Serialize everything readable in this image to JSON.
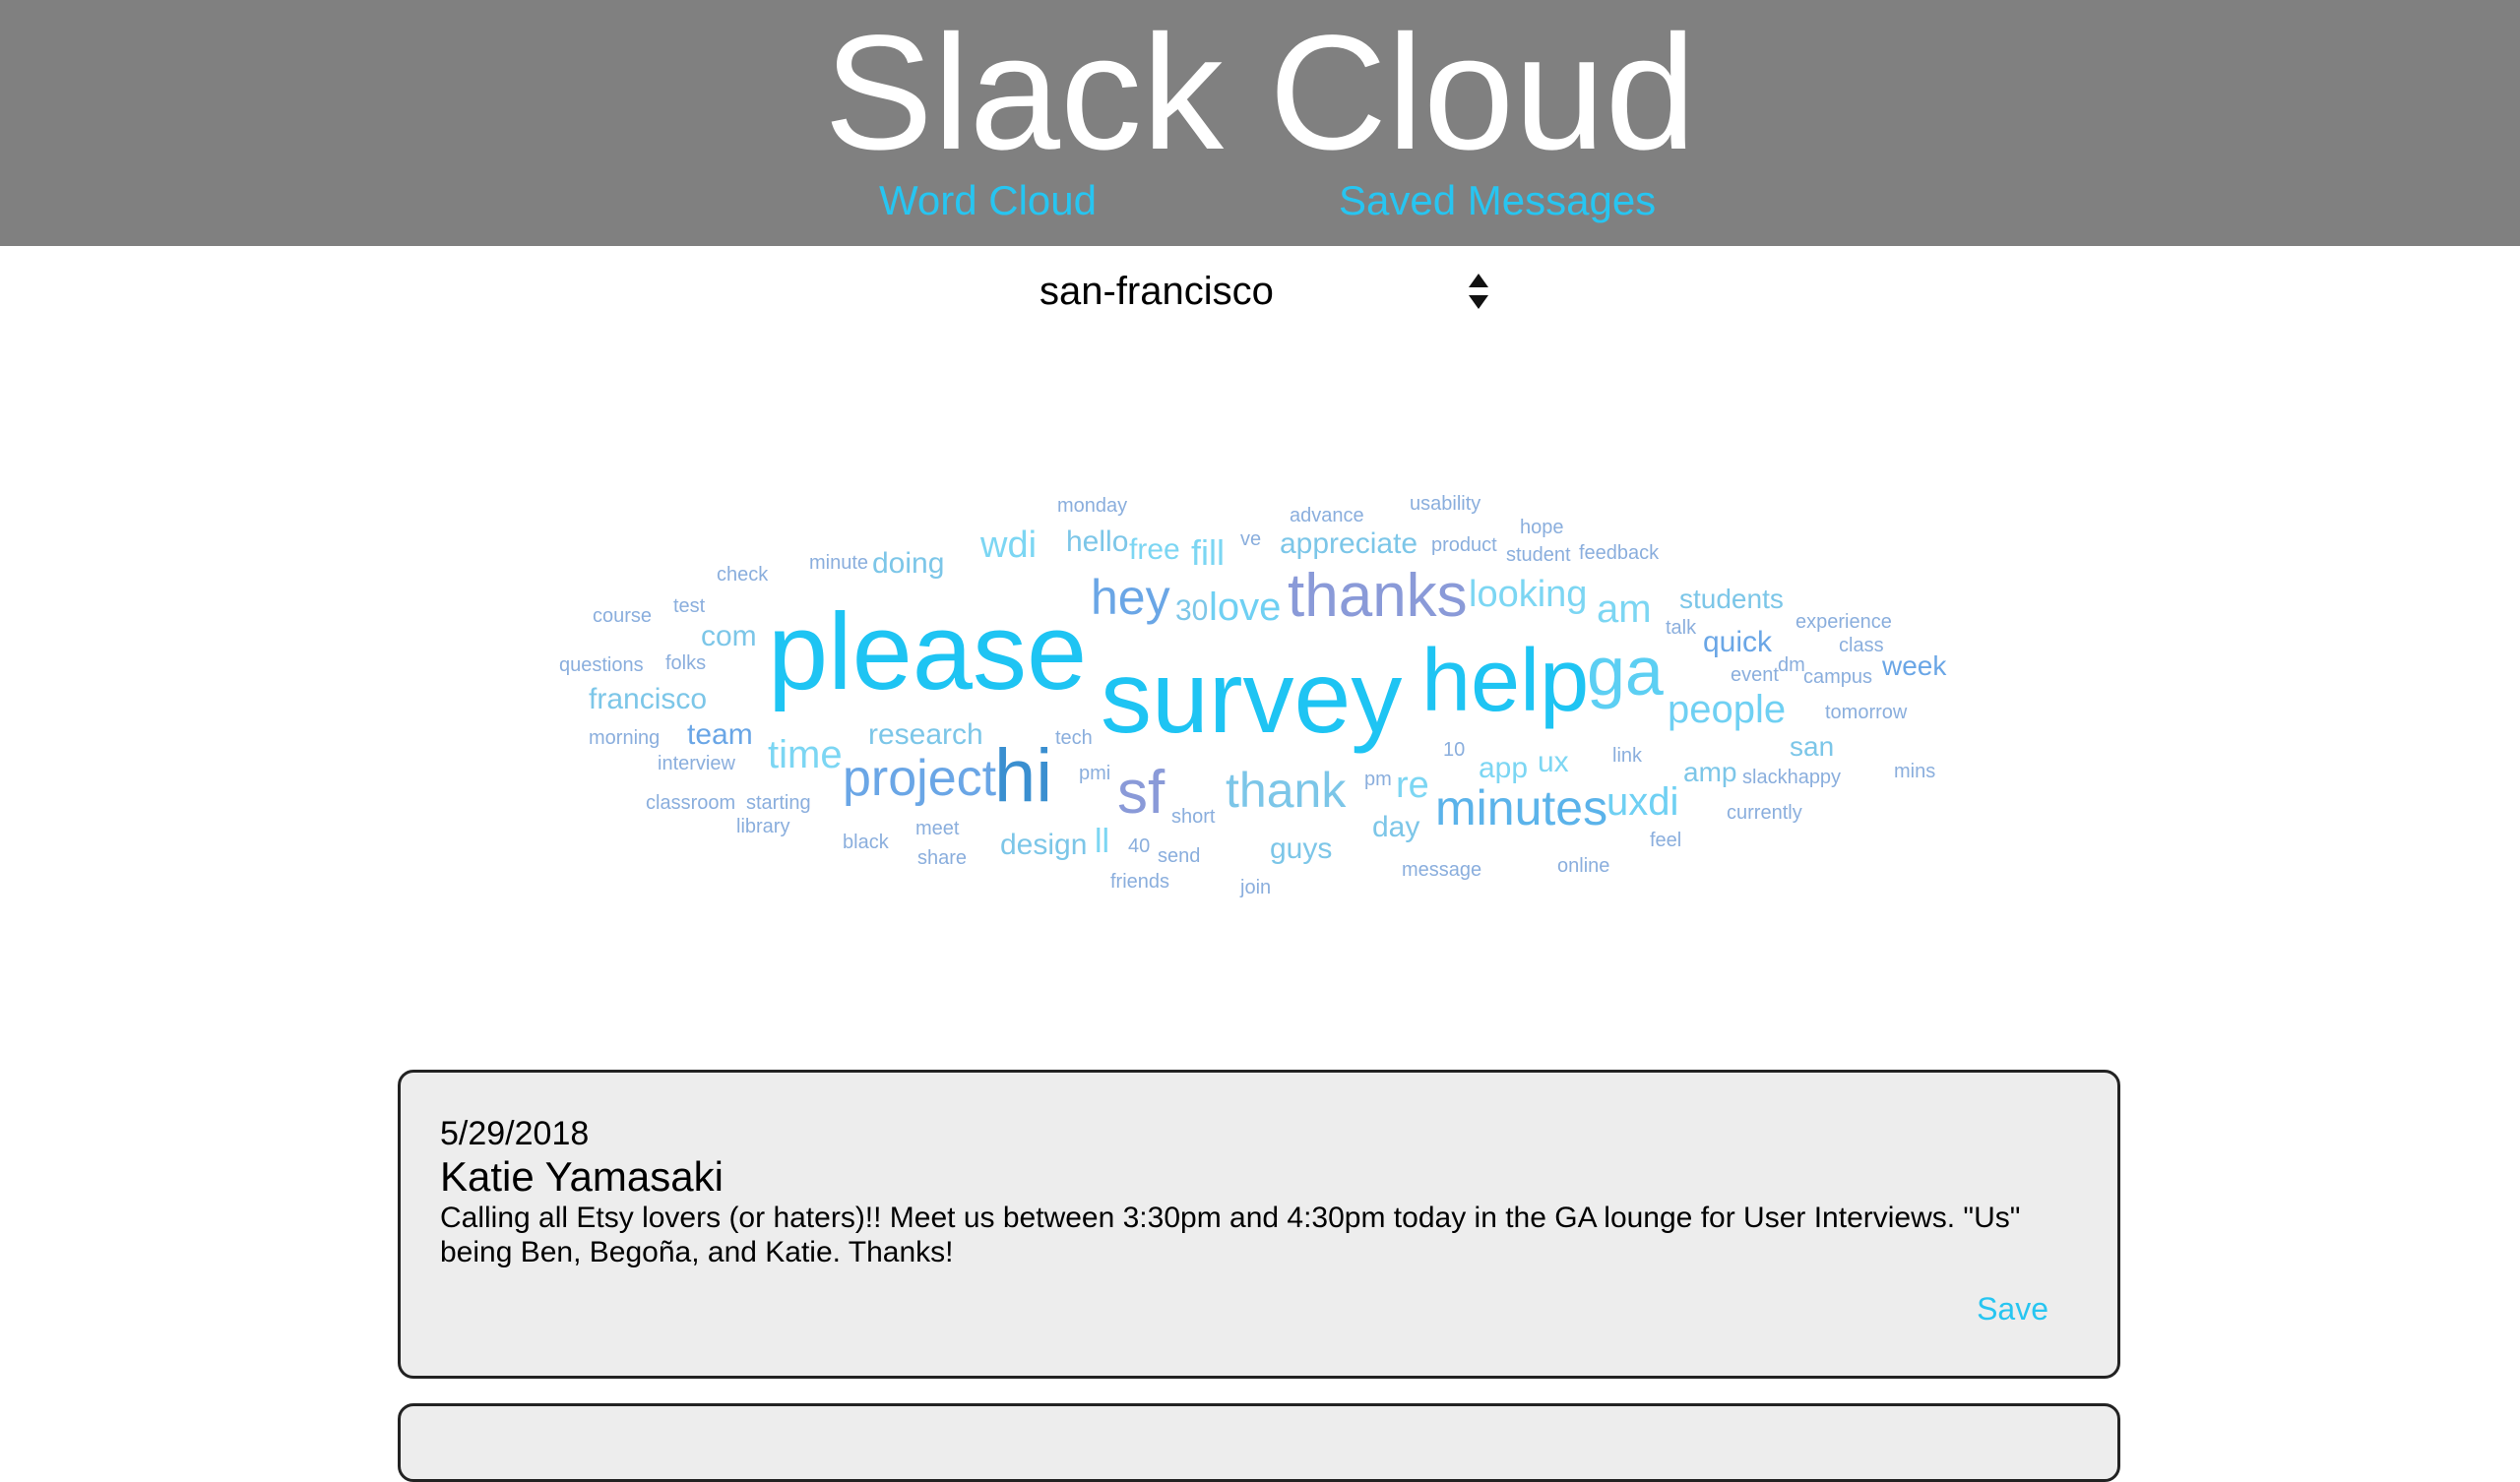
{
  "header": {
    "title": "Slack Cloud",
    "nav": {
      "word_cloud": "Word Cloud",
      "saved_messages": "Saved Messages"
    }
  },
  "channel_select": {
    "value": "san-francisco"
  },
  "word_cloud": {
    "words": [
      {
        "text": "please",
        "color": "#1ec4f3"
      },
      {
        "text": "survey",
        "color": "#1ec4f3"
      },
      {
        "text": "help",
        "color": "#1ec4f3"
      },
      {
        "text": "ga",
        "color": "#5ccff3"
      },
      {
        "text": "hi",
        "color": "#3a8fd0"
      },
      {
        "text": "thanks",
        "color": "#8a9ad8"
      },
      {
        "text": "sf",
        "color": "#8a9ad8"
      },
      {
        "text": "hey",
        "color": "#6aa6e6"
      },
      {
        "text": "minutes",
        "color": "#5bb3ea"
      },
      {
        "text": "project",
        "color": "#6aa6e6"
      },
      {
        "text": "thank",
        "color": "#7cc6e8"
      },
      {
        "text": "people",
        "color": "#6fd0f3"
      },
      {
        "text": "love",
        "color": "#6fd0f3"
      },
      {
        "text": "looking",
        "color": "#7cd6f3"
      },
      {
        "text": "uxdi",
        "color": "#6fd0f3"
      },
      {
        "text": "time",
        "color": "#7cd6f3"
      },
      {
        "text": "am",
        "color": "#7cd6f3"
      },
      {
        "text": "wdi",
        "color": "#7cd6f3"
      },
      {
        "text": "appreciate",
        "color": "#7cc6e8"
      },
      {
        "text": "research",
        "color": "#7cc6e8"
      },
      {
        "text": "francisco",
        "color": "#7cc6e8"
      },
      {
        "text": "students",
        "color": "#7cc6e8"
      },
      {
        "text": "design",
        "color": "#7cc6e8"
      },
      {
        "text": "team",
        "color": "#6aa6e6"
      },
      {
        "text": "com",
        "color": "#7cc6e8"
      },
      {
        "text": "guys",
        "color": "#7cc6e8"
      },
      {
        "text": "fill",
        "color": "#7cd6f3"
      },
      {
        "text": "free",
        "color": "#7cd6f3"
      },
      {
        "text": "hello",
        "color": "#7cc6e8"
      },
      {
        "text": "doing",
        "color": "#7cc6e8"
      },
      {
        "text": "re",
        "color": "#7cd6f3"
      },
      {
        "text": "day",
        "color": "#7cc6e8"
      },
      {
        "text": "quick",
        "color": "#6aa6e6"
      },
      {
        "text": "week",
        "color": "#6aa6e6"
      },
      {
        "text": "app",
        "color": "#7cd6f3"
      },
      {
        "text": "ux",
        "color": "#7cd6f3"
      },
      {
        "text": "san",
        "color": "#7cc6e8"
      },
      {
        "text": "amp",
        "color": "#7cc6e8"
      },
      {
        "text": "ll",
        "color": "#7cd6f3"
      },
      {
        "text": "30",
        "color": "#7cc6e8"
      },
      {
        "text": "monday",
        "color": "#8aaedd"
      },
      {
        "text": "advance",
        "color": "#8aaedd"
      },
      {
        "text": "usability",
        "color": "#8aaedd"
      },
      {
        "text": "ve",
        "color": "#8aaedd"
      },
      {
        "text": "product",
        "color": "#8aaedd"
      },
      {
        "text": "hope",
        "color": "#8aaedd"
      },
      {
        "text": "student",
        "color": "#8aaedd"
      },
      {
        "text": "feedback",
        "color": "#8aaedd"
      },
      {
        "text": "check",
        "color": "#8aaedd"
      },
      {
        "text": "minute",
        "color": "#8aaedd"
      },
      {
        "text": "course",
        "color": "#8aaedd"
      },
      {
        "text": "test",
        "color": "#8aaedd"
      },
      {
        "text": "questions",
        "color": "#8aaedd"
      },
      {
        "text": "folks",
        "color": "#8aaedd"
      },
      {
        "text": "talk",
        "color": "#8aaedd"
      },
      {
        "text": "experience",
        "color": "#8aaedd"
      },
      {
        "text": "class",
        "color": "#8aaedd"
      },
      {
        "text": "event",
        "color": "#8aaedd"
      },
      {
        "text": "dm",
        "color": "#8aaedd"
      },
      {
        "text": "campus",
        "color": "#8aaedd"
      },
      {
        "text": "tomorrow",
        "color": "#8aaedd"
      },
      {
        "text": "morning",
        "color": "#8aaedd"
      },
      {
        "text": "interview",
        "color": "#8aaedd"
      },
      {
        "text": "tech",
        "color": "#8aaedd"
      },
      {
        "text": "10",
        "color": "#8aaedd"
      },
      {
        "text": "link",
        "color": "#8aaedd"
      },
      {
        "text": "pmi",
        "color": "#8aaedd"
      },
      {
        "text": "pm",
        "color": "#8aaedd"
      },
      {
        "text": "slackhappy",
        "color": "#8aaedd"
      },
      {
        "text": "mins",
        "color": "#8aaedd"
      },
      {
        "text": "classroom",
        "color": "#8aaedd"
      },
      {
        "text": "starting",
        "color": "#8aaedd"
      },
      {
        "text": "library",
        "color": "#8aaedd"
      },
      {
        "text": "short",
        "color": "#8aaedd"
      },
      {
        "text": "currently",
        "color": "#8aaedd"
      },
      {
        "text": "black",
        "color": "#8aaedd"
      },
      {
        "text": "meet",
        "color": "#8aaedd"
      },
      {
        "text": "share",
        "color": "#8aaedd"
      },
      {
        "text": "40",
        "color": "#8aaedd"
      },
      {
        "text": "send",
        "color": "#8aaedd"
      },
      {
        "text": "feel",
        "color": "#8aaedd"
      },
      {
        "text": "friends",
        "color": "#8aaedd"
      },
      {
        "text": "join",
        "color": "#8aaedd"
      },
      {
        "text": "message",
        "color": "#8aaedd"
      },
      {
        "text": "online",
        "color": "#8aaedd"
      }
    ]
  },
  "messages": [
    {
      "date": "5/29/2018",
      "user": "Katie Yamasaki",
      "text": "Calling all Etsy lovers (or haters)!! Meet us between 3:30pm and 4:30pm today in the GA lounge for User Interviews. \"Us\" being Ben, Begoña, and Katie. Thanks!",
      "save_label": "Save"
    }
  ]
}
